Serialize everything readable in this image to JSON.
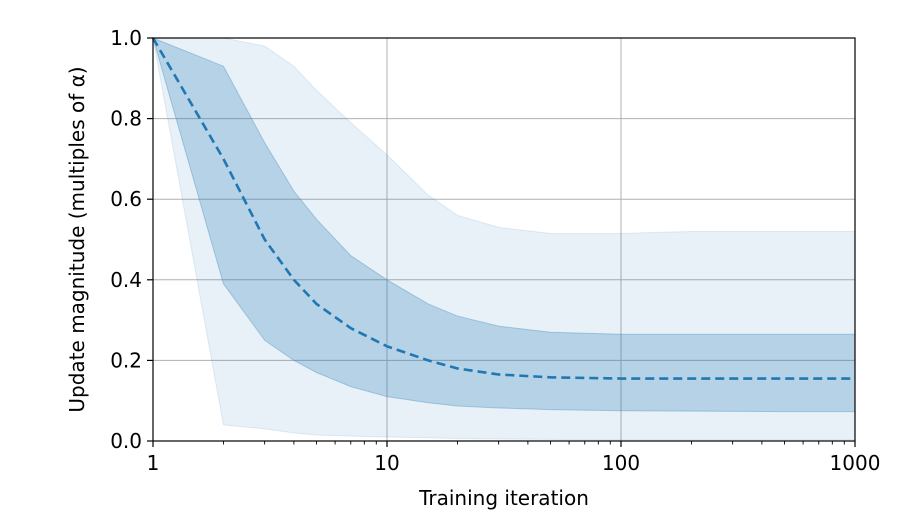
{
  "chart_data": {
    "type": "area",
    "title": "",
    "xlabel": "Training iteration",
    "ylabel": "Update magnitude (multiples of α)",
    "xscale": "log",
    "xlim": [
      1,
      1000
    ],
    "ylim": [
      0,
      1.0
    ],
    "grid": true,
    "legend": "none",
    "x_ticks": [
      1,
      10,
      100,
      1000
    ],
    "x_tick_labels": [
      "1",
      "10",
      "100",
      "1000"
    ],
    "y_ticks": [
      0.0,
      0.2,
      0.4,
      0.6,
      0.8,
      1.0
    ],
    "y_tick_labels": [
      "0.0",
      "0.2",
      "0.4",
      "0.6",
      "0.8",
      "1.0"
    ],
    "x": [
      1,
      2,
      3,
      4,
      5,
      7,
      10,
      15,
      20,
      30,
      50,
      100,
      200,
      500,
      1000
    ],
    "series": [
      {
        "style": "dashed-line",
        "color": "#1f77b4",
        "values": [
          1.0,
          0.7,
          0.5,
          0.4,
          0.34,
          0.28,
          0.235,
          0.2,
          0.18,
          0.165,
          0.158,
          0.155,
          0.155,
          0.155,
          0.155
        ]
      },
      {
        "style": "band",
        "color": "#1f77b4",
        "opacity": 0.25,
        "lower": [
          1.0,
          0.39,
          0.25,
          0.2,
          0.17,
          0.135,
          0.11,
          0.095,
          0.087,
          0.082,
          0.078,
          0.075,
          0.074,
          0.073,
          0.073
        ],
        "upper": [
          1.0,
          0.93,
          0.74,
          0.62,
          0.55,
          0.46,
          0.4,
          0.34,
          0.31,
          0.285,
          0.27,
          0.265,
          0.265,
          0.265,
          0.265
        ]
      },
      {
        "style": "band",
        "color": "#1f77b4",
        "opacity": 0.1,
        "lower": [
          1.0,
          0.04,
          0.03,
          0.02,
          0.015,
          0.012,
          0.01,
          0.008,
          0.006,
          0.005,
          0.004,
          0.003,
          0.003,
          0.003,
          0.003
        ],
        "upper": [
          1.0,
          1.0,
          0.98,
          0.93,
          0.87,
          0.79,
          0.71,
          0.61,
          0.56,
          0.53,
          0.515,
          0.515,
          0.52,
          0.52,
          0.52
        ]
      }
    ]
  }
}
